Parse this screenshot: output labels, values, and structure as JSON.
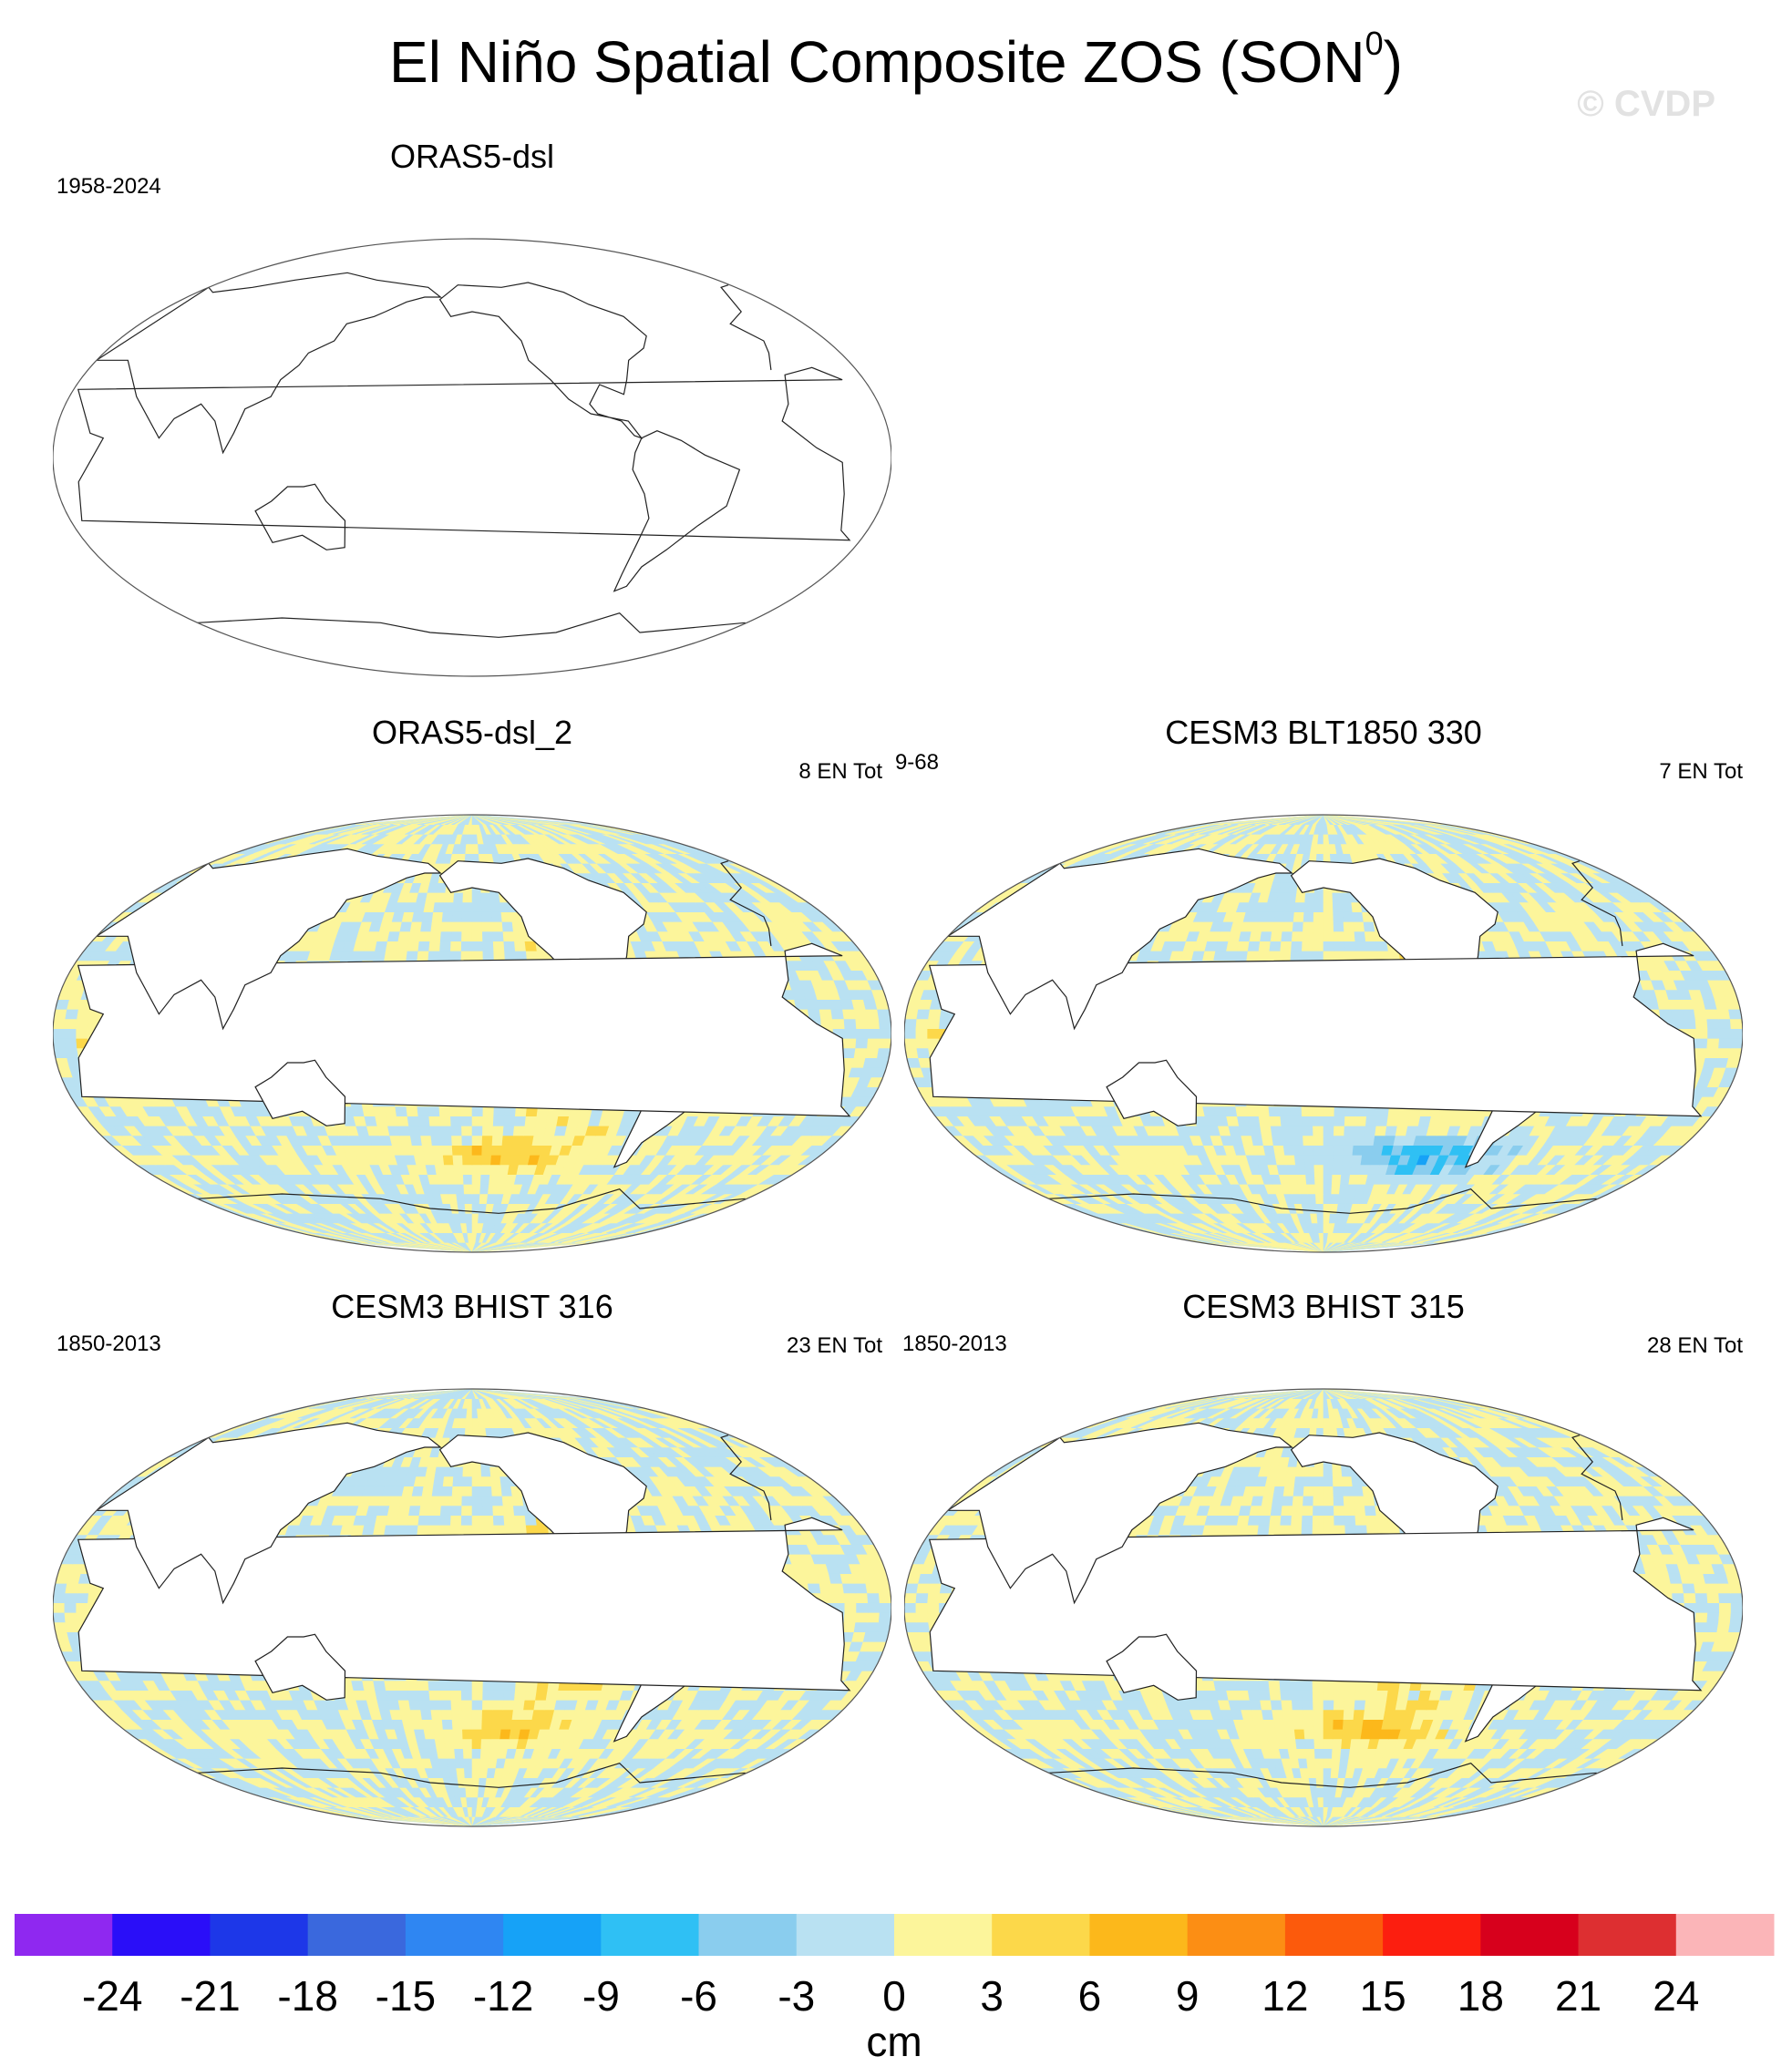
{
  "title": {
    "main": "El Niño Spatial Composite ZOS (SON",
    "sup": "0",
    "close": ")"
  },
  "watermark": "© CVDP",
  "panels": [
    {
      "id": "orass5",
      "title": "ORAS5-dsl",
      "left_label": "1958-2024",
      "right_label": "",
      "overlay": "",
      "filled": false
    },
    {
      "id": "orass5-2",
      "title": "ORAS5-dsl_2",
      "left_label": "",
      "right_label": "8 EN Tot",
      "overlay": "9-68",
      "filled": true,
      "pattern": {
        "hot": 16,
        "warm_shift": -3,
        "south_hot": 6
      }
    },
    {
      "id": "blt1850",
      "title": "CESM3 BLT1850 330",
      "left_label": "",
      "right_label": "7 EN Tot",
      "overlay": "",
      "filled": true,
      "pattern": {
        "hot": 14,
        "warm_shift": 0,
        "south_cold": -9
      }
    },
    {
      "id": "bhist316",
      "title": "CESM3 BHIST 316",
      "left_label": "1850-2013",
      "right_label": "23 EN Tot",
      "overlay": "",
      "filled": true,
      "pattern": {
        "hot": 12,
        "warm_shift": 3,
        "south_hot": 5
      }
    },
    {
      "id": "bhist315",
      "title": "CESM3 BHIST 315",
      "left_label": "1850-2013",
      "right_label": "28 EN Tot",
      "overlay": "",
      "filled": true,
      "pattern": {
        "hot": 11,
        "warm_shift": 3,
        "south_hot": 6
      }
    }
  ],
  "colorbar": {
    "unit": "cm",
    "levels": [
      -24,
      -21,
      -18,
      -15,
      -12,
      -9,
      -6,
      -3,
      0,
      3,
      6,
      9,
      12,
      15,
      18,
      21,
      24
    ],
    "level_labels": [
      "-24",
      "-21",
      "-18",
      "-15",
      "-12",
      "-9",
      "-6",
      "-3",
      "0",
      "3",
      "6",
      "9",
      "12",
      "15",
      "18",
      "21",
      "24"
    ],
    "colors": [
      "#8f28f0",
      "#2a0ef8",
      "#1d37e8",
      "#3a68dd",
      "#2f86f2",
      "#16a2f7",
      "#2fc0f4",
      "#8acdee",
      "#b9e1f2",
      "#fcf59b",
      "#fcd84a",
      "#fcb81b",
      "#fc8e14",
      "#fc5a0c",
      "#fc1e0f",
      "#d7001c",
      "#dd2f31",
      "#fbb5b8"
    ]
  }
}
